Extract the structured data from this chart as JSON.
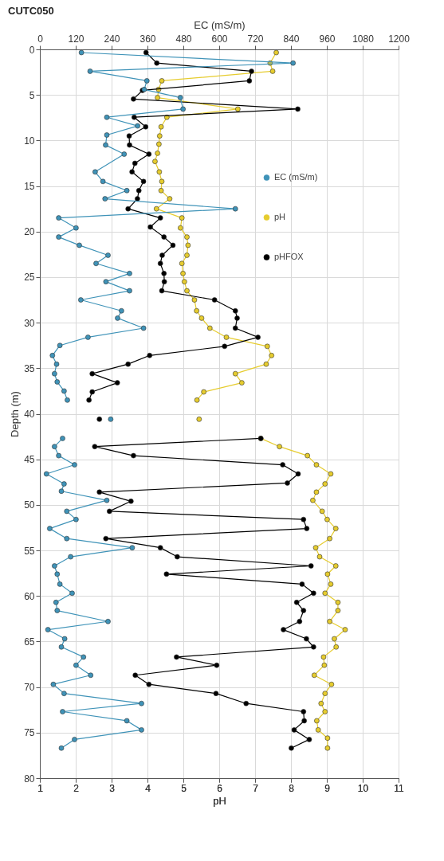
{
  "chart_data": {
    "type": "line",
    "title": "CUTC050",
    "xlabel": "pH",
    "x2label": "EC (mS/m)",
    "ylabel": "Depth (m)",
    "orientation": "horizontal",
    "xlim": [
      1,
      11
    ],
    "xticks": [
      1,
      2,
      3,
      4,
      5,
      6,
      7,
      8,
      9,
      10,
      11
    ],
    "x2lim": [
      0,
      1200
    ],
    "x2ticks": [
      0,
      120,
      240,
      360,
      480,
      600,
      720,
      840,
      960,
      1080,
      1200
    ],
    "ylim": [
      80,
      0
    ],
    "yticks": [
      0,
      5,
      10,
      15,
      20,
      25,
      30,
      35,
      40,
      45,
      50,
      55,
      60,
      65,
      70,
      75,
      80
    ],
    "grid": true,
    "legend": "right",
    "marker": "circle",
    "line_style": "solid",
    "series": [
      {
        "name": "EC (mS/m)",
        "color": "#3f93b8",
        "axis": "x2",
        "x": [
          0.35,
          1.5,
          2.4,
          3.45,
          4.4,
          5.3,
          6.55,
          7.45,
          8.4,
          9.4,
          10.5,
          11.5,
          13.45,
          14.5,
          15.5,
          16.4,
          17.5,
          18.5,
          19.6,
          20.6,
          21.5,
          22.6,
          23.5,
          24.6,
          25.5,
          26.5,
          27.5,
          28.7,
          29.5,
          30.6,
          31.6,
          32.5,
          33.6,
          34.55,
          35.6,
          36.5,
          37.5,
          38.5,
          39.5,
          40.6,
          41.5,
          42.7,
          43.6,
          44.6,
          45.6,
          46.6,
          47.7,
          48.5,
          49.5,
          50.7,
          51.6,
          52.6,
          53.7,
          54.7,
          55.7,
          56.7,
          57.6,
          58.7,
          59.7,
          60.7,
          61.6,
          62.8,
          63.7,
          64.7,
          65.6,
          66.7,
          67.6,
          68.7,
          69.7,
          70.7,
          71.8,
          72.7,
          73.7,
          74.7,
          75.75,
          76.7
        ],
        "values": [
          139,
          847,
          168,
          358,
          349,
          470,
          479,
          224,
          327,
          224,
          220,
          282,
          185,
          211,
          291,
          218,
          654,
          63,
          121,
          63,
          132,
          228,
          188,
          300,
          221,
          300,
          137,
          273,
          260,
          347,
          161,
          67,
          42,
          56,
          49,
          58,
          81,
          92,
          null,
          237,
          null,
          76,
          49,
          63,
          116,
          22,
          81,
          72,
          224,
          90,
          121,
          33,
          90,
          309,
          103,
          49,
          58,
          67,
          108,
          54,
          58,
          228,
          27,
          83,
          72,
          146,
          121,
          170,
          45,
          81,
          340,
          76,
          291,
          340,
          116,
          72
        ]
      },
      {
        "name": "pH",
        "color": "#e6cc2e",
        "x": [
          0.35,
          1.5,
          2.4,
          3.45,
          4.4,
          5.3,
          6.55,
          7.45,
          8.5,
          9.5,
          10.4,
          11.4,
          12.3,
          13.45,
          14.5,
          15.5,
          16.4,
          17.5,
          18.5,
          19.6,
          20.6,
          21.5,
          22.6,
          23.5,
          24.6,
          25.5,
          26.5,
          27.5,
          28.7,
          29.5,
          30.6,
          31.6,
          32.6,
          33.6,
          34.55,
          35.6,
          36.6,
          37.6,
          38.5,
          39.5,
          40.6,
          41.5,
          42.7,
          43.6,
          44.6,
          45.6,
          46.6,
          47.7,
          48.6,
          49.5,
          50.7,
          51.6,
          52.6,
          53.7,
          54.7,
          55.7,
          56.7,
          57.6,
          58.7,
          59.7,
          60.7,
          61.6,
          62.8,
          63.7,
          64.7,
          65.6,
          66.7,
          67.6,
          68.7,
          69.7,
          70.7,
          71.8,
          72.7,
          73.7,
          74.7,
          75.6,
          76.7
        ],
        "values": [
          7.59,
          7.42,
          7.49,
          4.4,
          4.31,
          4.28,
          6.52,
          4.54,
          4.38,
          4.34,
          4.32,
          4.28,
          4.21,
          4.33,
          4.4,
          4.38,
          4.62,
          4.25,
          4.96,
          4.92,
          5.1,
          5.13,
          5.1,
          4.96,
          4.99,
          5.03,
          5.1,
          5.31,
          5.37,
          5.51,
          5.74,
          6.2,
          7.34,
          7.46,
          7.31,
          6.45,
          6.63,
          5.57,
          5.38,
          null,
          5.44,
          null,
          7.16,
          7.68,
          8.46,
          8.71,
          9.11,
          8.95,
          8.71,
          8.61,
          8.87,
          9.01,
          9.25,
          9.08,
          8.69,
          8.8,
          9.25,
          9.02,
          9.11,
          8.95,
          9.31,
          9.31,
          9.08,
          9.51,
          9.21,
          9.26,
          8.91,
          8.93,
          8.65,
          9.13,
          8.95,
          8.84,
          8.95,
          8.72,
          8.76,
          9.02,
          9.02
        ]
      },
      {
        "name": "pHFOX",
        "color": "#000000",
        "x": [
          0.35,
          1.5,
          2.4,
          3.45,
          4.5,
          5.45,
          6.55,
          7.45,
          8.5,
          9.5,
          10.5,
          11.5,
          12.5,
          13.45,
          14.5,
          15.5,
          16.4,
          17.5,
          18.5,
          19.5,
          20.6,
          21.5,
          22.6,
          23.5,
          24.6,
          25.5,
          26.5,
          27.5,
          28.7,
          29.5,
          30.6,
          31.6,
          32.6,
          33.6,
          34.55,
          35.6,
          36.6,
          37.6,
          38.5,
          39.5,
          40.6,
          41.5,
          42.7,
          43.6,
          44.6,
          45.6,
          46.6,
          47.6,
          48.6,
          49.6,
          50.7,
          51.6,
          52.6,
          53.7,
          54.7,
          55.7,
          56.7,
          57.6,
          58.7,
          59.7,
          60.7,
          61.6,
          62.8,
          63.7,
          64.7,
          65.6,
          66.7,
          67.6,
          68.7,
          69.7,
          70.7,
          71.8,
          72.7,
          73.7,
          74.7,
          75.75,
          76.7
        ],
        "values": [
          3.96,
          4.26,
          6.9,
          6.84,
          3.86,
          3.61,
          8.19,
          3.63,
          3.95,
          3.49,
          3.5,
          4.04,
          3.65,
          3.57,
          3.89,
          3.76,
          3.72,
          3.46,
          4.36,
          4.08,
          4.46,
          4.71,
          4.41,
          4.36,
          4.46,
          4.47,
          4.4,
          5.87,
          6.45,
          6.5,
          6.45,
          7.08,
          6.15,
          4.06,
          3.46,
          2.46,
          3.16,
          2.46,
          2.37,
          null,
          2.66,
          null,
          7.16,
          2.53,
          3.61,
          7.77,
          8.2,
          7.9,
          2.66,
          3.54,
          2.94,
          8.35,
          8.44,
          2.84,
          4.36,
          4.83,
          8.56,
          4.53,
          8.31,
          8.63,
          8.16,
          8.35,
          8.24,
          7.79,
          8.43,
          8.63,
          4.81,
          5.93,
          3.66,
          4.04,
          5.91,
          6.75,
          8.35,
          8.37,
          8.09,
          8.51,
          8.01
        ]
      }
    ]
  }
}
